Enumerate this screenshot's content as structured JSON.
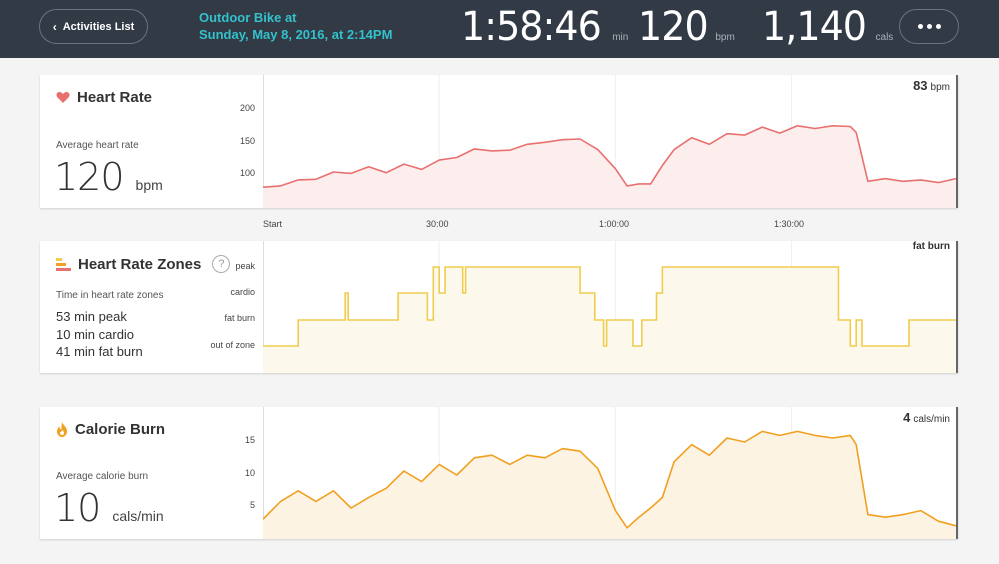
{
  "header": {
    "back_label": "Activities List",
    "activity_line1": "Outdoor Bike at",
    "activity_line2": "Sunday, May 8, 2016, at 2:14PM",
    "duration": "1:58:46",
    "duration_unit": "min",
    "bpm": "120",
    "bpm_unit": "bpm",
    "calories": "1,140",
    "calories_unit": "cals"
  },
  "heart_rate": {
    "title": "Heart Rate",
    "icon": "heart-icon",
    "sub": "Average heart rate",
    "avg": "120",
    "avg_unit": "bpm",
    "current": "83",
    "current_unit": "bpm",
    "y_ticks": [
      "200",
      "150",
      "100"
    ],
    "color": "#e8706f"
  },
  "x_ticks": [
    "Start",
    "30:00",
    "1:00:00",
    "1:30:00"
  ],
  "zones": {
    "title": "Heart Rate Zones",
    "icon": "zones-bars-icon",
    "help": "?",
    "sub": "Time in heart rate zones",
    "lines": [
      "53 min peak",
      "10 min cardio",
      "41 min fat burn"
    ],
    "current": "fat burn",
    "y_ticks": [
      "peak",
      "cardio",
      "fat burn",
      "out of zone"
    ],
    "color": "#f0cc4d"
  },
  "calories": {
    "title": "Calorie Burn",
    "icon": "flame-icon",
    "sub": "Average calorie burn",
    "avg": "10",
    "avg_unit": "cals/min",
    "current": "4",
    "current_unit": "cals/min",
    "y_ticks": [
      "15",
      "10",
      "5"
    ],
    "color": "#f0a020"
  },
  "chart_data": [
    {
      "type": "area",
      "title": "Heart Rate",
      "ylim": [
        60,
        210
      ],
      "x_minutes": [
        0,
        3,
        6,
        9,
        12,
        15,
        18,
        21,
        24,
        27,
        30,
        33,
        36,
        39,
        42,
        45,
        48,
        51,
        54,
        57,
        60,
        62,
        64,
        66,
        68,
        70,
        73,
        76,
        79,
        82,
        85,
        88,
        91,
        94,
        97,
        100,
        101,
        103,
        106,
        109,
        112,
        115,
        118
      ],
      "values": [
        80,
        85,
        88,
        95,
        100,
        104,
        108,
        105,
        112,
        110,
        118,
        128,
        135,
        138,
        133,
        148,
        145,
        155,
        150,
        140,
        105,
        85,
        82,
        88,
        110,
        140,
        152,
        148,
        158,
        162,
        168,
        165,
        170,
        172,
        170,
        175,
        160,
        92,
        90,
        92,
        88,
        90,
        93
      ]
    },
    {
      "type": "line",
      "title": "Heart Rate Zones",
      "categories_y": [
        "out of zone",
        "fat burn",
        "cardio",
        "peak"
      ],
      "x_minutes": [
        0,
        6,
        6,
        14,
        14,
        14.5,
        14.5,
        23,
        23,
        28,
        28,
        29,
        29,
        30,
        30,
        31,
        31,
        34,
        34,
        34.5,
        34.5,
        54,
        54,
        56.5,
        56.5,
        58,
        58,
        58.5,
        58.5,
        63,
        63,
        64.5,
        64.5,
        67,
        67,
        68,
        68,
        98,
        98,
        100,
        100,
        101,
        101,
        102,
        102,
        110,
        110,
        111,
        111,
        118
      ],
      "values": [
        "out of zone",
        "out of zone",
        "fat burn",
        "fat burn",
        "cardio",
        "cardio",
        "fat burn",
        "fat burn",
        "cardio",
        "cardio",
        "fat burn",
        "fat burn",
        "peak",
        "peak",
        "cardio",
        "cardio",
        "peak",
        "peak",
        "cardio",
        "cardio",
        "peak",
        "peak",
        "cardio",
        "cardio",
        "fat burn",
        "fat burn",
        "out of zone",
        "out of zone",
        "fat burn",
        "fat burn",
        "out of zone",
        "out of zone",
        "fat burn",
        "fat burn",
        "cardio",
        "cardio",
        "peak",
        "peak",
        "fat burn",
        "fat burn",
        "out of zone",
        "out of zone",
        "fat burn",
        "fat burn",
        "out of zone",
        "out of zone",
        "fat burn",
        "fat burn",
        "fat burn",
        "fat burn"
      ]
    },
    {
      "type": "area",
      "title": "Calorie Burn",
      "ylim": [
        0,
        18
      ],
      "x_minutes": [
        0,
        3,
        6,
        9,
        12,
        15,
        18,
        21,
        24,
        27,
        30,
        33,
        36,
        39,
        42,
        45,
        48,
        51,
        54,
        57,
        60,
        62,
        64,
        66,
        68,
        70,
        73,
        76,
        79,
        82,
        85,
        88,
        91,
        94,
        97,
        100,
        101,
        103,
        106,
        109,
        112,
        115,
        118
      ],
      "values": [
        3,
        6,
        7,
        6,
        7,
        5,
        6,
        8,
        10,
        9,
        11,
        10,
        12,
        13,
        11,
        13,
        12,
        14,
        13,
        11,
        4,
        2,
        3,
        5,
        6,
        12,
        14,
        13,
        15,
        15,
        16,
        16,
        16,
        16,
        15,
        16,
        14,
        4,
        3,
        4,
        4,
        3,
        2
      ]
    }
  ]
}
